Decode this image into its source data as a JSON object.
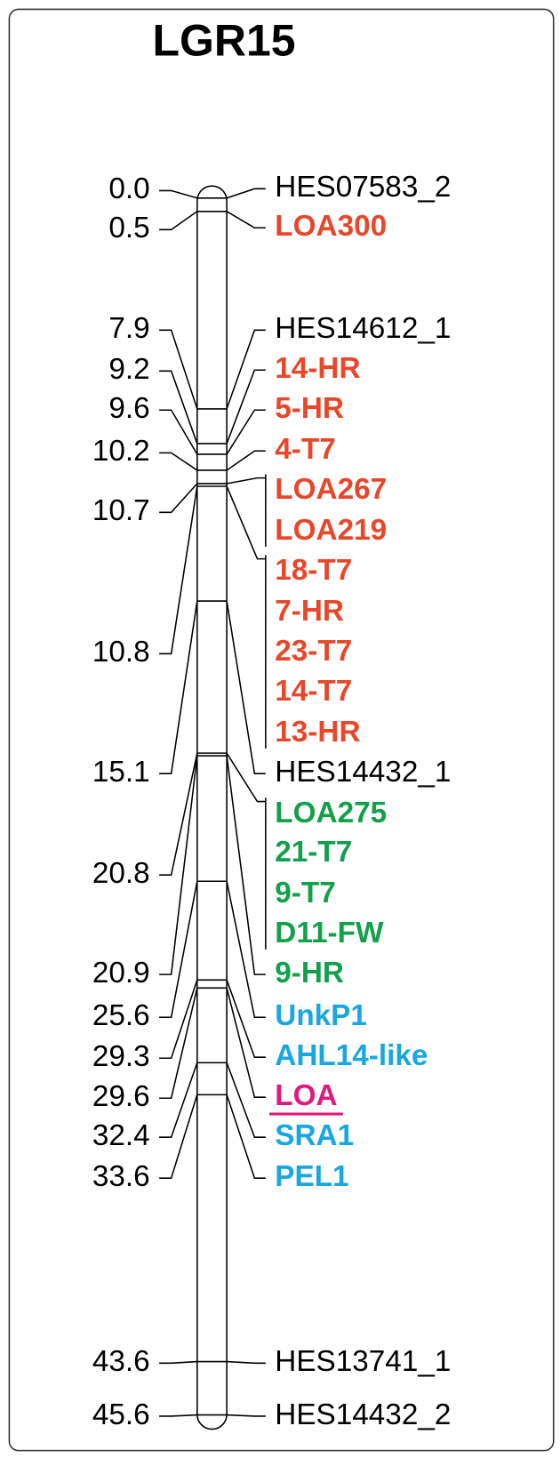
{
  "title": "LGR15",
  "loci": [
    {
      "position": "0.0",
      "markers": [
        {
          "name": "HES07583_2",
          "color": "#000000"
        }
      ]
    },
    {
      "position": "0.5",
      "markers": [
        {
          "name": "LOA300",
          "color": "#e8472a"
        }
      ]
    },
    {
      "position": "7.9",
      "markers": [
        {
          "name": "HES14612_1",
          "color": "#000000"
        }
      ]
    },
    {
      "position": "9.2",
      "markers": [
        {
          "name": "14-HR",
          "color": "#e8472a"
        }
      ]
    },
    {
      "position": "9.6",
      "markers": [
        {
          "name": "5-HR",
          "color": "#e8472a"
        }
      ]
    },
    {
      "position": "10.2",
      "markers": [
        {
          "name": "4-T7",
          "color": "#e8472a"
        }
      ]
    },
    {
      "position": "10.7",
      "markers": [
        {
          "name": "LOA267",
          "color": "#e8472a"
        },
        {
          "name": "LOA219",
          "color": "#e8472a"
        }
      ]
    },
    {
      "position": "10.8",
      "markers": [
        {
          "name": "18-T7",
          "color": "#e8472a"
        },
        {
          "name": "7-HR",
          "color": "#e8472a"
        },
        {
          "name": "23-T7",
          "color": "#e8472a"
        },
        {
          "name": "14-T7",
          "color": "#e8472a"
        },
        {
          "name": "13-HR",
          "color": "#e8472a"
        }
      ]
    },
    {
      "position": "15.1",
      "markers": [
        {
          "name": "HES14432_1",
          "color": "#000000"
        }
      ]
    },
    {
      "position": "20.8",
      "markers": [
        {
          "name": "LOA275",
          "color": "#13a04a"
        },
        {
          "name": "21-T7",
          "color": "#13a04a"
        },
        {
          "name": "9-T7",
          "color": "#13a04a"
        },
        {
          "name": "D11-FW",
          "color": "#13a04a"
        }
      ]
    },
    {
      "position": "20.9",
      "markers": [
        {
          "name": "9-HR",
          "color": "#13a04a"
        }
      ]
    },
    {
      "position": "25.6",
      "markers": [
        {
          "name": "UnkP1",
          "color": "#1aa7e0"
        }
      ]
    },
    {
      "position": "29.3",
      "markers": [
        {
          "name": "AHL14-like",
          "color": "#1aa7e0"
        }
      ]
    },
    {
      "position": "29.6",
      "markers": [
        {
          "name": "LOA",
          "color": "#e0197d",
          "underline": true
        }
      ]
    },
    {
      "position": "32.4",
      "markers": [
        {
          "name": "SRA1",
          "color": "#1aa7e0"
        }
      ]
    },
    {
      "position": "33.6",
      "markers": [
        {
          "name": "PEL1",
          "color": "#1aa7e0"
        }
      ]
    },
    {
      "position": "43.6",
      "markers": [
        {
          "name": "HES13741_1",
          "color": "#000000"
        }
      ]
    },
    {
      "position": "45.6",
      "markers": [
        {
          "name": "HES14432_2",
          "color": "#000000"
        }
      ]
    }
  ]
}
